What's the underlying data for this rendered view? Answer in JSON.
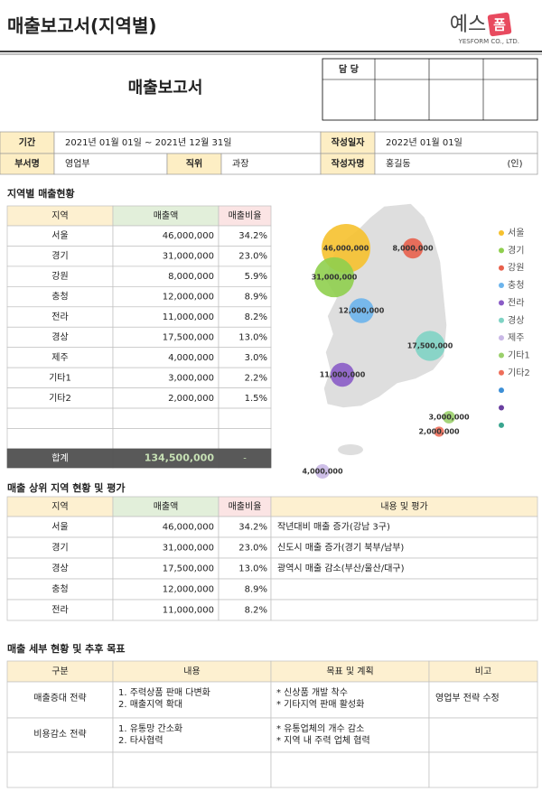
{
  "header": {
    "title": "매출보고서(지역별)",
    "logo_main": "예스",
    "logo_badge": "폼",
    "logo_sub": "YESFORM CO., LTD."
  },
  "report": {
    "title": "매출보고서",
    "approval": "담  당",
    "period_label": "기간",
    "period": "2021년 01월 01일 ~ 2021년 12월 31일",
    "date_label": "작성일자",
    "date": "2022년 01월 01일",
    "dept_label": "부서명",
    "dept": "영업부",
    "position_label": "직위",
    "position": "과장",
    "author_label": "작성자명",
    "author": "홍길동",
    "seal": "(인)"
  },
  "regional": {
    "title": "지역별 매출현황",
    "columns": [
      "지역",
      "매출액",
      "매출비율"
    ],
    "rows": [
      {
        "region": "서울",
        "amount": {
          "value": 46000000,
          "label": "46,000,000"
        },
        "ratio": "34.2%"
      },
      {
        "region": "경기",
        "amount": {
          "value": 31000000,
          "label": "31,000,000"
        },
        "ratio": "23.0%"
      },
      {
        "region": "강원",
        "amount": {
          "value": 8000000,
          "label": "8,000,000"
        },
        "ratio": "5.9%"
      },
      {
        "region": "충청",
        "amount": {
          "value": 12000000,
          "label": "12,000,000"
        },
        "ratio": "8.9%"
      },
      {
        "region": "전라",
        "amount": {
          "value": 11000000,
          "label": "11,000,000"
        },
        "ratio": "8.2%"
      },
      {
        "region": "경상",
        "amount": {
          "value": 17500000,
          "label": "17,500,000"
        },
        "ratio": "13.0%"
      },
      {
        "region": "제주",
        "amount": {
          "value": 4000000,
          "label": "4,000,000"
        },
        "ratio": "3.0%"
      },
      {
        "region": "기타1",
        "amount": {
          "value": 3000000,
          "label": "3,000,000"
        },
        "ratio": "2.2%"
      },
      {
        "region": "기타2",
        "amount": {
          "value": 2000000,
          "label": "2,000,000"
        },
        "ratio": "1.5%"
      }
    ],
    "total": {
      "label": "합계",
      "amount": "134,500,000",
      "ratio": "-"
    }
  },
  "map": {
    "bubble_colors": [
      "#f6c12e",
      "#8fcf4e",
      "#e8604c",
      "#6cb4ec",
      "#8a5cc6",
      "#7fd3c4",
      "#c9b8e6",
      "#9bd06c",
      "#ee6e5a"
    ],
    "extra_legend_colors": [
      "#3d8fd6",
      "#6a3fa0",
      "#3aa58f"
    ]
  },
  "top_regions": {
    "title": "매출 상위 지역 현황 및 평가",
    "columns": [
      "지역",
      "매출액",
      "매출비율",
      "내용 및 평가"
    ],
    "rows": [
      [
        "서울",
        "46,000,000",
        "34.2%",
        "작년대비 매출 증가(강남 3구)"
      ],
      [
        "경기",
        "31,000,000",
        "23.0%",
        "신도시 매출 증가(경기 북부/남부)"
      ],
      [
        "경상",
        "17,500,000",
        "13.0%",
        "광역시 매출 감소(부산/울산/대구)"
      ],
      [
        "충청",
        "12,000,000",
        "8.9%"
      ],
      [
        "전라",
        "11,000,000",
        "8.2%"
      ]
    ]
  },
  "details": {
    "title": "매출 세부 현황 및 추후 목표",
    "columns": [
      "구분",
      "내용",
      "목표 및 계획",
      "비고"
    ],
    "rows": [
      {
        "category": "매출증대 전략",
        "content": [
          "1. 주력상품 판매 다변화",
          "2. 매출지역 확대"
        ],
        "goals": [
          "* 신상품 개발 착수",
          "* 기타지역 판매 활성화"
        ],
        "note": "영업부 전략 수정"
      },
      {
        "category": "비용감소 전략",
        "content": [
          "1. 유통망 간소화",
          "2. 타사협력"
        ],
        "goals": [
          "* 유통업체의 개수 감소",
          "* 지역 내 주력 업체 협력"
        ]
      }
    ]
  }
}
